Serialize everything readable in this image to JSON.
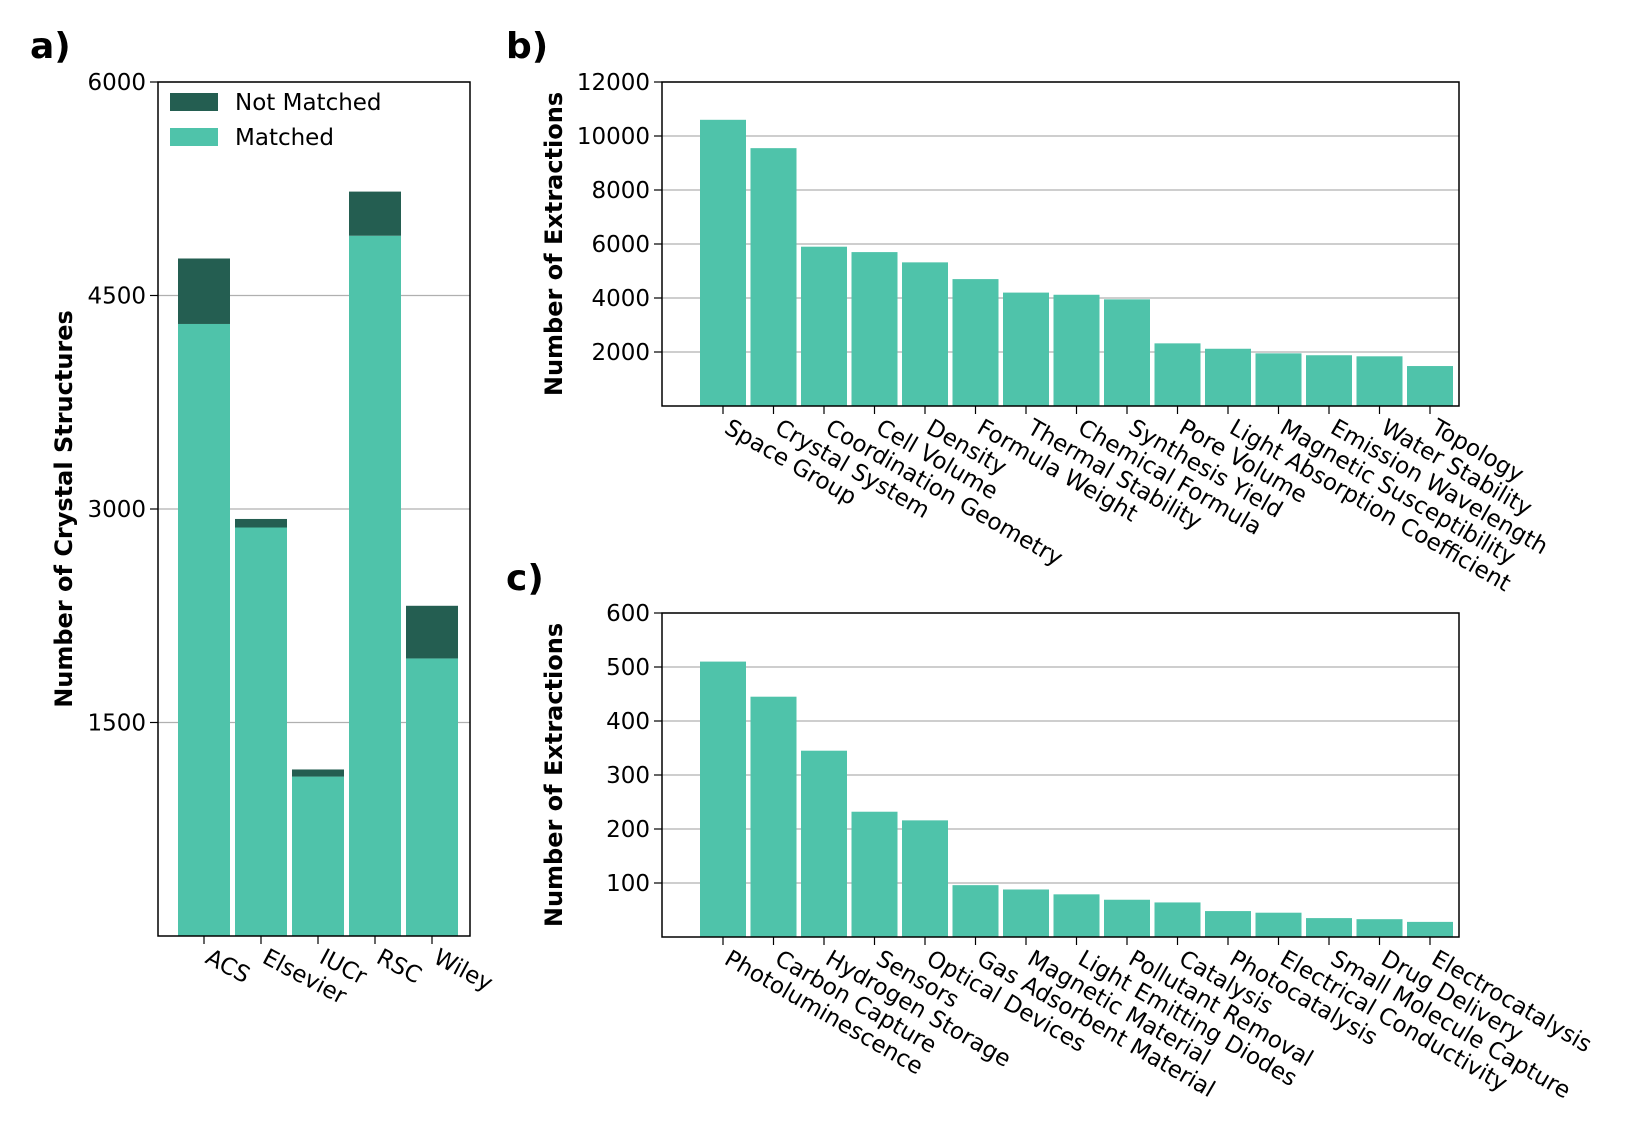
{
  "colors": {
    "matched": "#4fc3aa",
    "not_matched": "#245e51",
    "grid": "#b0b0b0"
  },
  "chart_data": [
    {
      "panel": "a)",
      "type": "bar",
      "stacked": true,
      "categories": [
        "ACS",
        "Elsevier",
        "IUCr",
        "RSC",
        "Wiley"
      ],
      "series": [
        {
          "name": "Matched",
          "values": [
            4300,
            2870,
            1120,
            4920,
            1950
          ]
        },
        {
          "name": "Not Matched",
          "values": [
            460,
            60,
            50,
            310,
            370
          ]
        }
      ],
      "ylabel": "Number of Crystal Structures",
      "yticks": [
        1500,
        3000,
        4500,
        6000
      ],
      "ylim": [
        0,
        6000
      ],
      "grid": true,
      "legend": "top-left"
    },
    {
      "panel": "b)",
      "type": "bar",
      "categories": [
        "Space Group",
        "Crystal System",
        "Coordination Geometry",
        "Cell Volume",
        "Density",
        "Formula Weight",
        "Thermal Stability",
        "Chemical Formula",
        "Synthesis Yield",
        "Pore Volume",
        "Light Absorption Coefficient",
        "Magnetic Susceptibility",
        "Emission Wavelength",
        "Water Stability",
        "Topology"
      ],
      "values": [
        10600,
        9550,
        5900,
        5700,
        5320,
        4700,
        4200,
        4120,
        3950,
        2320,
        2120,
        1950,
        1880,
        1840,
        1480
      ],
      "ylabel": "Number of Extractions",
      "yticks": [
        2000,
        4000,
        6000,
        8000,
        10000,
        12000
      ],
      "ylim": [
        0,
        12000
      ],
      "grid": true
    },
    {
      "panel": "c)",
      "type": "bar",
      "categories": [
        "Photoluminescence",
        "Carbon Capture",
        "Hydrogen Storage",
        "Sensors",
        "Optical Devices",
        "Gas Adsorbent Material",
        "Magnetic Material",
        "Light Emitting Diodes",
        "Pollutant Removal",
        "Catalysis",
        "Photocatalysis",
        "Electrical Conductivity",
        "Small Molecule Capture",
        "Drug Delivery",
        "Electrocatalysis"
      ],
      "values": [
        510,
        445,
        345,
        232,
        216,
        96,
        88,
        79,
        69,
        64,
        48,
        45,
        35,
        33,
        28
      ],
      "ylabel": "Number of Extractions",
      "yticks": [
        100,
        200,
        300,
        400,
        500,
        600
      ],
      "ylim": [
        0,
        600
      ],
      "grid": true
    }
  ]
}
